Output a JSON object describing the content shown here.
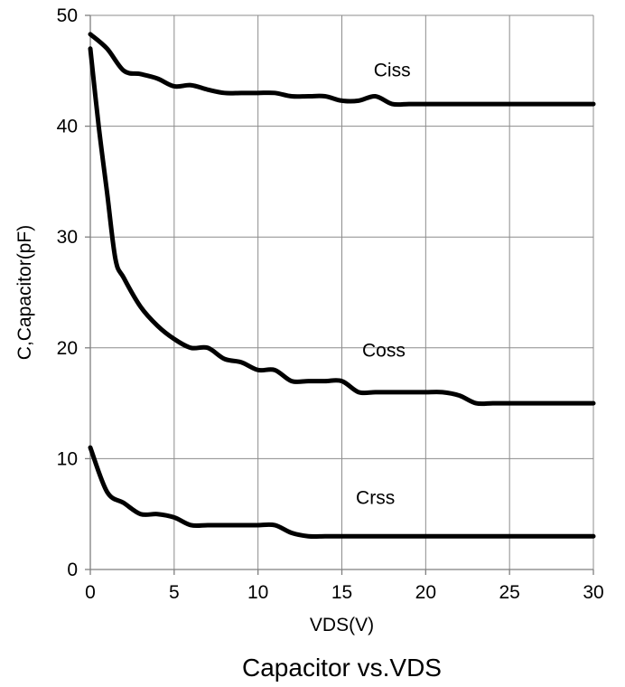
{
  "chart_data": {
    "type": "line",
    "title": "Capacitor vs.VDS",
    "xlabel": "VDS(V)",
    "ylabel": "C,Capacitor(pF)",
    "xlim": [
      0,
      30
    ],
    "ylim": [
      0,
      50
    ],
    "x_ticks": [
      0,
      5,
      10,
      15,
      20,
      25,
      30
    ],
    "y_ticks": [
      0,
      10,
      20,
      30,
      40,
      50
    ],
    "grid": true,
    "series": [
      {
        "name": "Ciss",
        "x": [
          0,
          1,
          2,
          3,
          4,
          5,
          6,
          7,
          8,
          9,
          10,
          11,
          12,
          13,
          14,
          15,
          16,
          17,
          18,
          19,
          20,
          21,
          22,
          23,
          24,
          25,
          26,
          27,
          28,
          29,
          30
        ],
        "y": [
          48.3,
          47,
          45,
          44.7,
          44.3,
          43.6,
          43.7,
          43.3,
          43,
          43,
          43,
          43,
          42.7,
          42.7,
          42.7,
          42.3,
          42.3,
          42.7,
          42,
          42,
          42,
          42,
          42,
          42,
          42,
          42,
          42,
          42,
          42,
          42,
          42
        ]
      },
      {
        "name": "Coss",
        "x": [
          0,
          0.5,
          1,
          1.5,
          2,
          3,
          4,
          5,
          6,
          7,
          8,
          9,
          10,
          11,
          12,
          13,
          14,
          15,
          16,
          17,
          18,
          19,
          20,
          21,
          22,
          23,
          24,
          25,
          26,
          27,
          28,
          29,
          30
        ],
        "y": [
          47,
          40,
          34,
          28,
          26.3,
          23.7,
          22,
          20.8,
          20,
          20,
          19,
          18.7,
          18,
          18,
          17,
          17,
          17,
          17,
          16,
          16,
          16,
          16,
          16,
          16,
          15.7,
          15,
          15,
          15,
          15,
          15,
          15,
          15,
          15
        ]
      },
      {
        "name": "Crss",
        "x": [
          0,
          1,
          2,
          3,
          4,
          5,
          6,
          7,
          8,
          9,
          10,
          11,
          12,
          13,
          14,
          15,
          16,
          17,
          18,
          19,
          20,
          21,
          22,
          23,
          24,
          25,
          26,
          27,
          28,
          29,
          30
        ],
        "y": [
          11,
          7,
          6,
          5,
          5,
          4.7,
          4,
          4,
          4,
          4,
          4,
          4,
          3.3,
          3,
          3,
          3,
          3,
          3,
          3,
          3,
          3,
          3,
          3,
          3,
          3,
          3,
          3,
          3,
          3,
          3,
          3
        ]
      }
    ]
  }
}
